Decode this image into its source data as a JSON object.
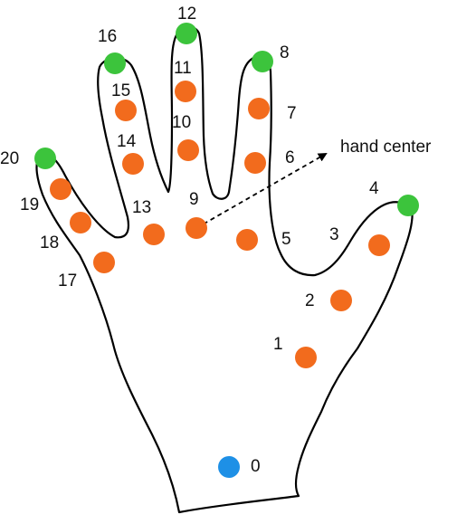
{
  "colors": {
    "wrist": "#1e90e6",
    "joint": "#f26b1d",
    "tip": "#3cc43c",
    "outline": "#000000"
  },
  "center_label": "hand center",
  "keypoints": [
    {
      "id": "0",
      "kind": "wrist"
    },
    {
      "id": "1",
      "kind": "joint"
    },
    {
      "id": "2",
      "kind": "joint"
    },
    {
      "id": "3",
      "kind": "joint"
    },
    {
      "id": "4",
      "kind": "tip"
    },
    {
      "id": "5",
      "kind": "joint"
    },
    {
      "id": "6",
      "kind": "joint"
    },
    {
      "id": "7",
      "kind": "joint"
    },
    {
      "id": "8",
      "kind": "tip"
    },
    {
      "id": "9",
      "kind": "joint"
    },
    {
      "id": "10",
      "kind": "joint"
    },
    {
      "id": "11",
      "kind": "joint"
    },
    {
      "id": "12",
      "kind": "tip"
    },
    {
      "id": "13",
      "kind": "joint"
    },
    {
      "id": "14",
      "kind": "joint"
    },
    {
      "id": "15",
      "kind": "joint"
    },
    {
      "id": "16",
      "kind": "tip"
    },
    {
      "id": "17",
      "kind": "joint"
    },
    {
      "id": "18",
      "kind": "joint"
    },
    {
      "id": "19",
      "kind": "joint"
    },
    {
      "id": "20",
      "kind": "tip"
    }
  ]
}
